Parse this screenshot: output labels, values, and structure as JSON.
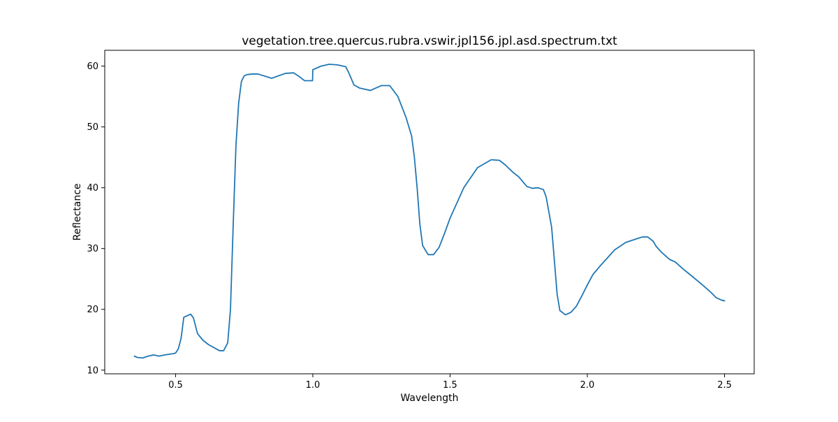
{
  "chart_data": {
    "type": "line",
    "title": "vegetation.tree.quercus.rubra.vswir.jpl156.jpl.asd.spectrum.txt",
    "xlabel": "Wavelength",
    "ylabel": "Reflectance",
    "xlim": [
      0.242,
      2.608
    ],
    "ylim": [
      9.4,
      62.6
    ],
    "xticks": [
      0.5,
      1.0,
      1.5,
      2.0,
      2.5
    ],
    "xtick_labels": [
      "0.5",
      "1.0",
      "1.5",
      "2.0",
      "2.5"
    ],
    "yticks": [
      10,
      20,
      30,
      40,
      50,
      60
    ],
    "ytick_labels": [
      "10",
      "20",
      "30",
      "40",
      "50",
      "60"
    ],
    "grid": false,
    "series": [
      {
        "color": "#1f77b4",
        "x": [
          0.35,
          0.36,
          0.38,
          0.4,
          0.42,
          0.44,
          0.46,
          0.49,
          0.5,
          0.51,
          0.52,
          0.53,
          0.545,
          0.555,
          0.565,
          0.58,
          0.6,
          0.62,
          0.64,
          0.66,
          0.675,
          0.69,
          0.7,
          0.71,
          0.72,
          0.73,
          0.74,
          0.75,
          0.76,
          0.78,
          0.8,
          0.85,
          0.9,
          0.93,
          0.95,
          0.97,
          0.999,
          1.0,
          1.03,
          1.06,
          1.09,
          1.12,
          1.13,
          1.15,
          1.17,
          1.21,
          1.25,
          1.28,
          1.31,
          1.34,
          1.36,
          1.37,
          1.38,
          1.39,
          1.4,
          1.42,
          1.44,
          1.46,
          1.48,
          1.5,
          1.55,
          1.6,
          1.65,
          1.68,
          1.7,
          1.73,
          1.75,
          1.78,
          1.8,
          1.82,
          1.84,
          1.85,
          1.87,
          1.88,
          1.89,
          1.9,
          1.92,
          1.94,
          1.96,
          1.98,
          2.0,
          2.02,
          2.05,
          2.1,
          2.14,
          2.18,
          2.2,
          2.22,
          2.24,
          2.25,
          2.27,
          2.3,
          2.32,
          2.35,
          2.38,
          2.42,
          2.45,
          2.47,
          2.49,
          2.5
        ],
        "y": [
          12.3,
          12.1,
          12.0,
          12.3,
          12.5,
          12.3,
          12.5,
          12.7,
          12.8,
          13.5,
          15.2,
          18.7,
          19.0,
          19.2,
          18.6,
          16.0,
          14.9,
          14.2,
          13.7,
          13.2,
          13.2,
          14.5,
          20.0,
          34.0,
          47.0,
          54.0,
          57.5,
          58.4,
          58.6,
          58.7,
          58.7,
          58.0,
          58.8,
          58.9,
          58.3,
          57.6,
          57.6,
          59.4,
          60.0,
          60.3,
          60.2,
          59.9,
          59.0,
          56.9,
          56.4,
          56.0,
          56.8,
          56.8,
          55.0,
          51.5,
          48.5,
          45.0,
          40.0,
          34.0,
          30.5,
          29.0,
          29.0,
          30.2,
          32.5,
          35.0,
          40.0,
          43.3,
          44.6,
          44.5,
          43.8,
          42.5,
          41.8,
          40.2,
          39.9,
          40.0,
          39.7,
          38.5,
          33.5,
          28.0,
          22.5,
          19.8,
          19.1,
          19.5,
          20.5,
          22.2,
          24.0,
          25.7,
          27.3,
          29.8,
          31.0,
          31.6,
          31.9,
          31.9,
          31.2,
          30.4,
          29.4,
          28.2,
          27.8,
          26.6,
          25.5,
          24.0,
          22.8,
          21.9,
          21.5,
          21.4
        ]
      }
    ]
  }
}
